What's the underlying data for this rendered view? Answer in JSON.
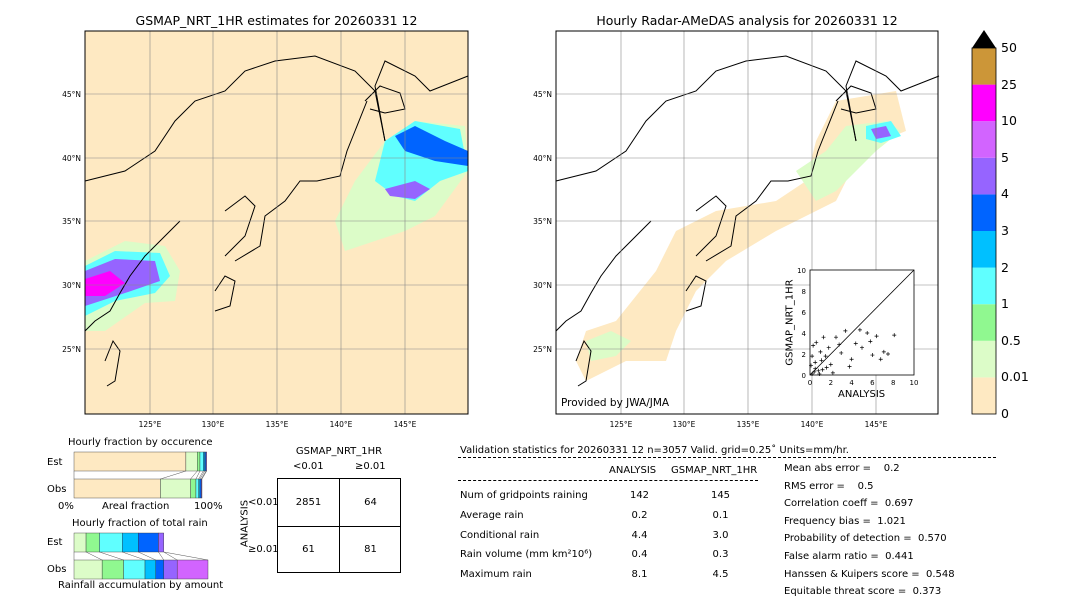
{
  "left_map": {
    "title": "GSMAP_NRT_1HR estimates for 20260331 12"
  },
  "right_map": {
    "title": "Hourly Radar-AMeDAS analysis for 20260331 12",
    "credit": "Provided by JWA/JMA"
  },
  "lon_ticks": [
    "125°E",
    "130°E",
    "135°E",
    "140°E",
    "145°E"
  ],
  "lat_ticks": [
    "45°N",
    "40°N",
    "35°N",
    "30°N",
    "25°N"
  ],
  "colorbar": {
    "labels": [
      "0",
      "0.01",
      "0.5",
      "1",
      "2",
      "3",
      "4",
      "5",
      "10",
      "25",
      "50"
    ],
    "colors": [
      "#fee9c2",
      "#dcfcc8",
      "#90f890",
      "#60ffff",
      "#00c0ff",
      "#0064ff",
      "#9664ff",
      "#d264ff",
      "#ff00ff",
      "#cc9638"
    ],
    "extend_color": "#000000"
  },
  "chart_data": [
    {
      "type": "scatter",
      "xlabel": "ANALYSIS",
      "ylabel": "GSMAP_NRT_1HR",
      "xlim": [
        0,
        10
      ],
      "ylim": [
        0,
        10
      ],
      "xticks": [
        "0",
        "2",
        "4",
        "6",
        "8",
        "10"
      ],
      "yticks": [
        "0",
        "2",
        "4",
        "6",
        "8",
        "10"
      ],
      "points": [
        [
          0.2,
          0.1
        ],
        [
          0.4,
          0.3
        ],
        [
          0.5,
          1.2
        ],
        [
          0.8,
          0.4
        ],
        [
          1.0,
          2.2
        ],
        [
          1.2,
          0.5
        ],
        [
          1.5,
          1.8
        ],
        [
          0.3,
          2.8
        ],
        [
          2.0,
          1.0
        ],
        [
          2.5,
          3.6
        ],
        [
          3.0,
          2.1
        ],
        [
          3.4,
          4.2
        ],
        [
          0.6,
          3.1
        ],
        [
          4.0,
          1.5
        ],
        [
          4.4,
          3.0
        ],
        [
          5.0,
          2.6
        ],
        [
          5.5,
          4.0
        ],
        [
          6.0,
          1.9
        ],
        [
          6.4,
          3.7
        ],
        [
          6.8,
          1.5
        ],
        [
          7.1,
          2.2
        ],
        [
          7.5,
          2.0
        ],
        [
          8.1,
          3.8
        ],
        [
          1.8,
          2.6
        ],
        [
          2.2,
          0.2
        ],
        [
          0.1,
          0.9
        ],
        [
          0.9,
          0.1
        ],
        [
          1.3,
          3.6
        ],
        [
          2.8,
          2.9
        ],
        [
          3.8,
          0.8
        ],
        [
          4.8,
          4.3
        ],
        [
          5.8,
          3.2
        ],
        [
          0.5,
          0.6
        ],
        [
          1.1,
          1.4
        ],
        [
          0.2,
          1.8
        ],
        [
          1.6,
          0.7
        ]
      ]
    },
    {
      "type": "bar",
      "title": "Hourly fraction by occurence",
      "categories": [
        "Est",
        "Obs"
      ],
      "xlabel": "Areal fraction",
      "xtick_labels": [
        "0%",
        "100%"
      ],
      "series": [
        {
          "values": [
            0.835,
            0.645
          ]
        },
        {
          "values": [
            0.085,
            0.225
          ]
        },
        {
          "values": [
            0.02,
            0.04
          ]
        },
        {
          "values": [
            0.025,
            0.02
          ]
        },
        {
          "values": [
            0.01,
            0.01
          ]
        },
        {
          "values": [
            0.01,
            0.01
          ]
        },
        {
          "values": [
            0.005,
            0.005
          ]
        }
      ]
    },
    {
      "type": "bar",
      "title": "Hourly fraction of total rain",
      "categories": [
        "Est",
        "Obs"
      ],
      "xlabel": "Rainfall accumulation by amount",
      "series": [
        {
          "values": [
            0.09,
            0.21
          ]
        },
        {
          "values": [
            0.1,
            0.16
          ]
        },
        {
          "values": [
            0.17,
            0.16
          ]
        },
        {
          "values": [
            0.12,
            0.08
          ]
        },
        {
          "values": [
            0.15,
            0.06
          ]
        },
        {
          "values": [
            0.04,
            0.1
          ]
        },
        {
          "values": [
            0,
            0.23
          ]
        }
      ]
    }
  ],
  "contingency": {
    "title": "GSMAP_NRT_1HR",
    "col_headers": [
      "<0.01",
      "≥0.01"
    ],
    "row_label": "ANALYSIS",
    "row_headers": [
      "<0.01",
      "≥0.01"
    ],
    "cells": [
      [
        "2851",
        "64"
      ],
      [
        "61",
        "81"
      ]
    ]
  },
  "stats": {
    "header": "Validation statistics for 20260331 12  n=3057 Valid. grid=0.25˚ Units=mm/hr.",
    "col_headers": [
      "ANALYSIS",
      "GSMAP_NRT_1HR"
    ],
    "rows": [
      {
        "label": "Num of gridpoints raining",
        "a": "142",
        "b": "145"
      },
      {
        "label": "Average rain",
        "a": "0.2",
        "b": "0.1"
      },
      {
        "label": "Conditional rain",
        "a": "4.4",
        "b": "3.0"
      },
      {
        "label": "Rain volume (mm km²10⁶)",
        "a": "0.4",
        "b": "0.3"
      },
      {
        "label": "Maximum rain",
        "a": "8.1",
        "b": "4.5"
      }
    ],
    "scores": [
      "Mean abs error =    0.2",
      "RMS error =    0.5",
      "Correlation coeff =  0.697",
      "Frequency bias =  1.021",
      "Probability of detection =  0.570",
      "False alarm ratio =  0.441",
      "Hanssen & Kuipers score =  0.548",
      "Equitable threat score =  0.373"
    ]
  }
}
